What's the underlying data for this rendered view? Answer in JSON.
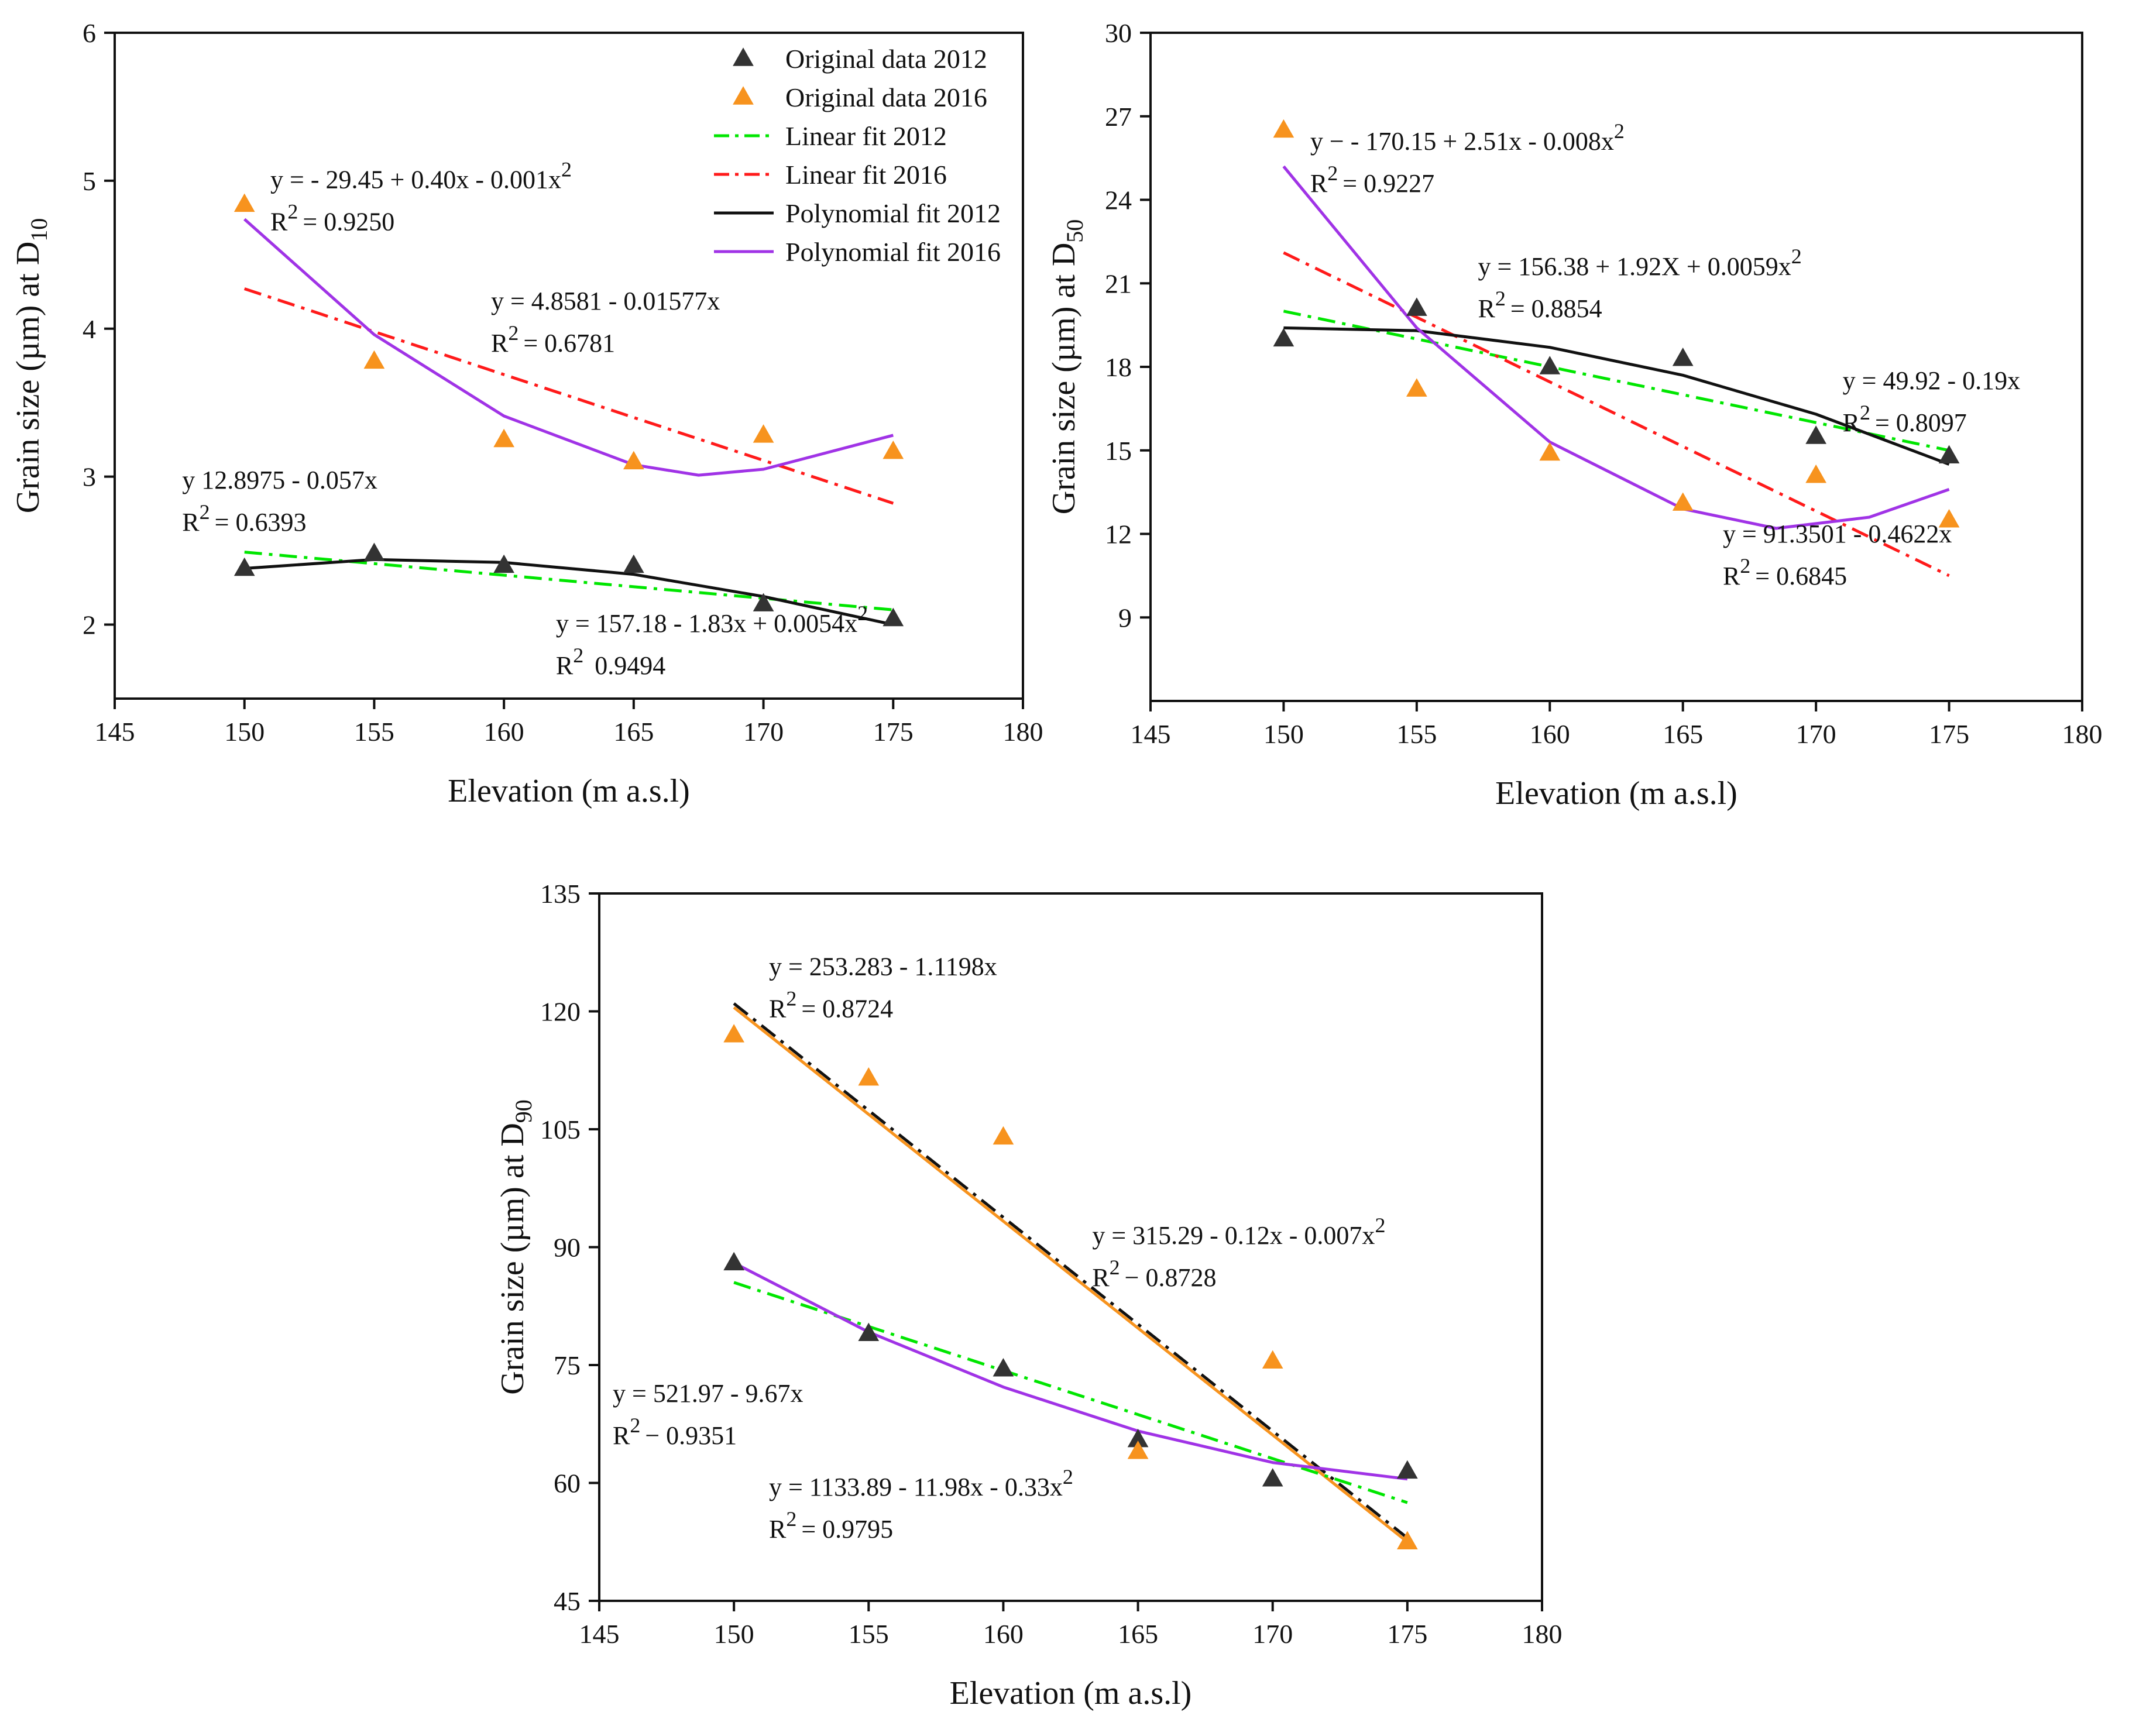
{
  "figure": {
    "description_free": true
  },
  "colors": {
    "data2012": "#333333",
    "data2016": "#f7931e",
    "linear2012": "#00e600",
    "linear2016": "#ff1a1a",
    "poly2012": "#111111",
    "poly2016": "#a033e6",
    "axis": "#111111"
  },
  "legend": {
    "items": [
      {
        "key": "data2012",
        "label": "Original data 2012",
        "kind": "marker"
      },
      {
        "key": "data2016",
        "label": "Original data 2016",
        "kind": "marker"
      },
      {
        "key": "linear2012",
        "label": "Linear fit 2012",
        "kind": "dashdot"
      },
      {
        "key": "linear2016",
        "label": "Linear fit 2016",
        "kind": "dashdot"
      },
      {
        "key": "poly2012",
        "label": "Polynomial fit 2012",
        "kind": "solid"
      },
      {
        "key": "poly2016",
        "label": "Polynomial fit 2016",
        "kind": "solid"
      }
    ]
  },
  "chart_data": [
    {
      "id": "d10",
      "type": "scatter",
      "xlabel": "Elevation (m a.s.l)",
      "ylabel": "Grain size (µm) at D",
      "ylabel_sub": "10",
      "xlim": [
        145,
        180
      ],
      "ylim": [
        1.5,
        6
      ],
      "xticks": [
        145,
        150,
        155,
        160,
        165,
        170,
        175,
        180
      ],
      "yticks": [
        2,
        3,
        4,
        5,
        6
      ],
      "x": [
        150,
        155,
        160,
        165,
        170,
        175
      ],
      "series": [
        {
          "name": "Original data 2012",
          "key": "data2012",
          "values": [
            2.38,
            2.48,
            2.4,
            2.4,
            2.14,
            2.04
          ]
        },
        {
          "name": "Original data 2016",
          "key": "data2016",
          "values": [
            4.84,
            3.78,
            3.25,
            3.1,
            3.28,
            3.17
          ]
        }
      ],
      "fits": [
        {
          "key": "linear2012",
          "style": "dashdot",
          "points": [
            [
              150,
              2.49
            ],
            [
              175,
              2.1
            ]
          ]
        },
        {
          "key": "linear2016",
          "style": "dashdot",
          "points": [
            [
              150,
              4.27
            ],
            [
              175,
              2.82
            ]
          ]
        },
        {
          "key": "poly2012",
          "style": "solid",
          "points": [
            [
              150,
              2.38
            ],
            [
              155,
              2.44
            ],
            [
              160,
              2.42
            ],
            [
              165,
              2.34
            ],
            [
              170,
              2.19
            ],
            [
              175,
              2.0
            ]
          ]
        },
        {
          "key": "poly2016",
          "style": "solid",
          "points": [
            [
              150,
              4.74
            ],
            [
              155,
              3.96
            ],
            [
              160,
              3.41
            ],
            [
              165,
              3.08
            ],
            [
              167.5,
              3.01
            ],
            [
              170,
              3.05
            ],
            [
              175,
              3.28
            ]
          ]
        }
      ],
      "annotations": [
        {
          "eq": "y = - 29.45 + 0.40x - 0.001x",
          "sup": "2",
          "r2": "= 0.9250",
          "at": [
            151,
            4.95
          ]
        },
        {
          "eq": "y = 4.8581 - 0.01577x",
          "sup": "",
          "r2": "= 0.6781",
          "at": [
            159.5,
            4.13
          ]
        },
        {
          "eq": "y   12.8975 - 0.057x",
          "sup": "",
          "r2": "= 0.6393",
          "at": [
            147.6,
            2.92
          ]
        },
        {
          "eq": "y = 157.18 - 1.83x + 0.0054x",
          "sup": "2",
          "r2": "   0.9494",
          "at": [
            162,
            1.95
          ]
        }
      ],
      "legend_shown": true
    },
    {
      "id": "d50",
      "type": "scatter",
      "xlabel": "Elevation (m a.s.l)",
      "ylabel": "Grain size (µm) at D",
      "ylabel_sub": "50",
      "xlim": [
        145,
        180
      ],
      "ylim": [
        6,
        30
      ],
      "xticks": [
        145,
        150,
        155,
        160,
        165,
        170,
        175,
        180
      ],
      "yticks": [
        9,
        12,
        15,
        18,
        21,
        24,
        27,
        30
      ],
      "x": [
        150,
        155,
        160,
        165,
        170,
        175
      ],
      "series": [
        {
          "name": "Original data 2012",
          "key": "data2012",
          "values": [
            19.0,
            20.1,
            18.0,
            18.3,
            15.5,
            14.8
          ]
        },
        {
          "name": "Original data 2016",
          "key": "data2016",
          "values": [
            26.5,
            17.2,
            14.9,
            13.1,
            14.1,
            12.5
          ]
        }
      ],
      "fits": [
        {
          "key": "linear2012",
          "style": "dashdot",
          "points": [
            [
              150,
              20.0
            ],
            [
              175,
              15.0
            ]
          ]
        },
        {
          "key": "linear2016",
          "style": "dashdot",
          "points": [
            [
              150,
              22.1
            ],
            [
              175,
              10.5
            ]
          ]
        },
        {
          "key": "poly2012",
          "style": "solid",
          "points": [
            [
              150,
              19.4
            ],
            [
              155,
              19.3
            ],
            [
              160,
              18.7
            ],
            [
              165,
              17.7
            ],
            [
              170,
              16.3
            ],
            [
              175,
              14.5
            ]
          ]
        },
        {
          "key": "poly2016",
          "style": "solid",
          "points": [
            [
              150,
              25.2
            ],
            [
              155,
              19.4
            ],
            [
              160,
              15.3
            ],
            [
              165,
              12.9
            ],
            [
              168.5,
              12.2
            ],
            [
              172,
              12.6
            ],
            [
              175,
              13.6
            ]
          ]
        }
      ],
      "annotations": [
        {
          "eq": "y − - 170.15 + 2.51x - 0.008x",
          "sup": "2",
          "r2": "= 0.9227",
          "at": [
            151,
            25.8
          ]
        },
        {
          "eq": "y = 156.38 + 1.92X + 0.0059x",
          "sup": "2",
          "r2": "= 0.8854",
          "at": [
            157.3,
            21.3
          ]
        },
        {
          "eq": "y = 49.92 - 0.19x",
          "sup": "",
          "r2": "= 0.8097",
          "at": [
            171,
            17.2
          ]
        },
        {
          "eq": "y = 91.3501 - 0.4622x",
          "sup": "",
          "r2": "= 0.6845",
          "at": [
            166.5,
            11.7
          ]
        }
      ],
      "legend_shown": false
    },
    {
      "id": "d90",
      "type": "scatter",
      "xlabel": "Elevation (m a.s.l)",
      "ylabel": "Grain size (µm) at D",
      "ylabel_sub": "90",
      "xlim": [
        145,
        180
      ],
      "ylim": [
        45,
        135
      ],
      "xticks": [
        145,
        150,
        155,
        160,
        165,
        170,
        175,
        180
      ],
      "yticks": [
        45,
        60,
        75,
        90,
        105,
        120,
        135
      ],
      "x": [
        150,
        155,
        160,
        165,
        170,
        175
      ],
      "series": [
        {
          "name": "Original data 2012",
          "key": "data2012",
          "values": [
            88.0,
            79.0,
            74.5,
            65.5,
            60.5,
            61.5
          ]
        },
        {
          "name": "Original data 2016",
          "key": "data2016",
          "values": [
            117.0,
            111.5,
            104.0,
            64.0,
            75.5,
            52.5
          ]
        }
      ],
      "fits": [
        {
          "key": "poly2012",
          "style": "dashdot",
          "points": [
            [
              150,
              121.0
            ],
            [
              175,
              53.0
            ]
          ]
        },
        {
          "key": "data2016",
          "style": "solid",
          "points": [
            [
              150,
              120.5
            ],
            [
              175,
              52.5
            ]
          ]
        },
        {
          "key": "linear2012",
          "style": "dashdot",
          "points": [
            [
              150,
              85.5
            ],
            [
              175,
              57.5
            ]
          ]
        },
        {
          "key": "poly2016",
          "style": "solid",
          "points": [
            [
              150,
              88.0
            ],
            [
              155,
              79.2
            ],
            [
              160,
              72.2
            ],
            [
              165,
              66.6
            ],
            [
              170,
              62.6
            ],
            [
              175,
              60.5
            ]
          ]
        }
      ],
      "annotations": [
        {
          "eq": "y = 253.283 - 1.1198x",
          "sup": "",
          "r2": "= 0.8724",
          "at": [
            151.3,
            124.6
          ]
        },
        {
          "eq": "y = 315.29 - 0.12x - 0.007x",
          "sup": "2",
          "r2": "− 0.8728",
          "at": [
            163.3,
            90.4
          ]
        },
        {
          "eq": "y = 521.97 - 9.67x",
          "sup": "",
          "r2": "− 0.9351",
          "at": [
            145.5,
            70.3
          ]
        },
        {
          "eq": "y = 1133.89 - 11.98x - 0.33x",
          "sup": "2",
          "r2": "= 0.9795",
          "at": [
            151.3,
            58.4
          ]
        }
      ],
      "legend_shown": false
    }
  ]
}
